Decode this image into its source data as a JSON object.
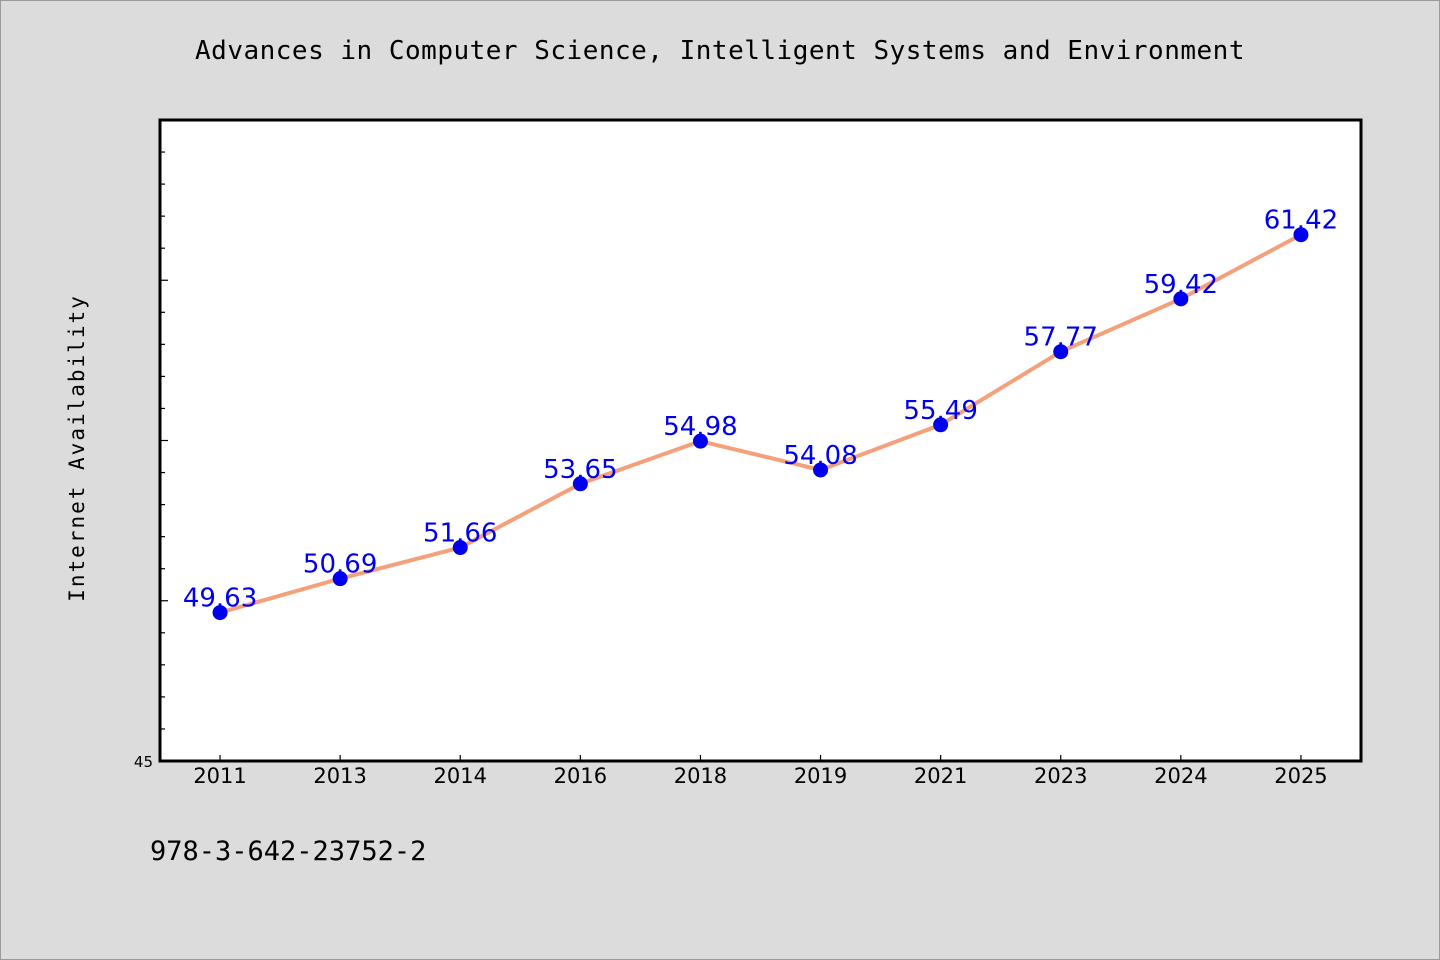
{
  "chart_data": {
    "type": "line",
    "title": "Advances in Computer Science, Intelligent Systems and Environment",
    "xlabel": "",
    "ylabel": "Internet Availability",
    "categories": [
      "2011",
      "2013",
      "2014",
      "2016",
      "2018",
      "2019",
      "2021",
      "2023",
      "2024",
      "2025"
    ],
    "series": [
      {
        "values": [
          49.63,
          50.69,
          51.66,
          53.65,
          54.98,
          54.08,
          55.49,
          57.77,
          59.42,
          61.42
        ],
        "labels": [
          "49.63",
          "50.69",
          "51.66",
          "53.65",
          "54.98",
          "54.08",
          "55.49",
          "57.77",
          "59.42",
          "61.42"
        ],
        "line_color": "#f4a07a",
        "marker_color": "#0000ee",
        "label_color": "#0000ee"
      }
    ],
    "ylim": [
      45,
      65
    ],
    "y_tick_labels": [
      "45"
    ],
    "grid": false,
    "legend": "none"
  },
  "footer": {
    "code": "978-3-642-23752-2"
  }
}
